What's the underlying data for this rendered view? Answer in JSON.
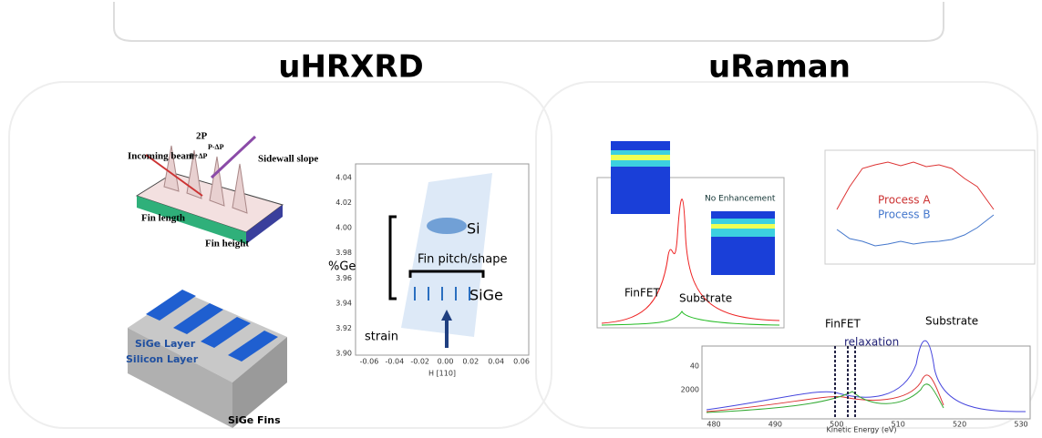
{
  "headings": {
    "left": "uHRXRD",
    "right": "uRaman"
  },
  "schematic": {
    "period": "2P",
    "plus": "P+ΔP",
    "minus": "P-ΔP",
    "beam": "Incoming beam",
    "sidewall": "Sidewall slope",
    "length": "Fin length",
    "height": "Fin height"
  },
  "fins3d": {
    "layer1": "SiGe Layer",
    "layer2": "Silicon Layer",
    "caption": "SiGe Fins"
  },
  "rsm": {
    "xlabel": "H [110]",
    "yticks": [
      "4.04",
      "4.02",
      "4.00",
      "3.98",
      "3.96",
      "3.94",
      "3.92",
      "3.90"
    ],
    "xticks": [
      "-0.06",
      "-0.04",
      "-0.02",
      "0.00",
      "0.02",
      "0.04",
      "0.06"
    ],
    "si": "Si",
    "sige": "SiGe",
    "ge": "%Ge",
    "pitch": "Fin pitch/shape",
    "strain": "strain"
  },
  "raman": {
    "finfet": "FinFET",
    "substrate": "Substrate",
    "enh": "No Enhancement"
  },
  "process": {
    "a": "Process A",
    "b": "Process B"
  },
  "xps": {
    "finfet": "FinFET",
    "relax": "relaxation",
    "substrate": "Substrate",
    "xlabel": "Kinetic Energy (eV)",
    "xticks": [
      "480",
      "490",
      "500",
      "510",
      "520",
      "530"
    ],
    "yticks": [
      "2000",
      "40"
    ]
  }
}
